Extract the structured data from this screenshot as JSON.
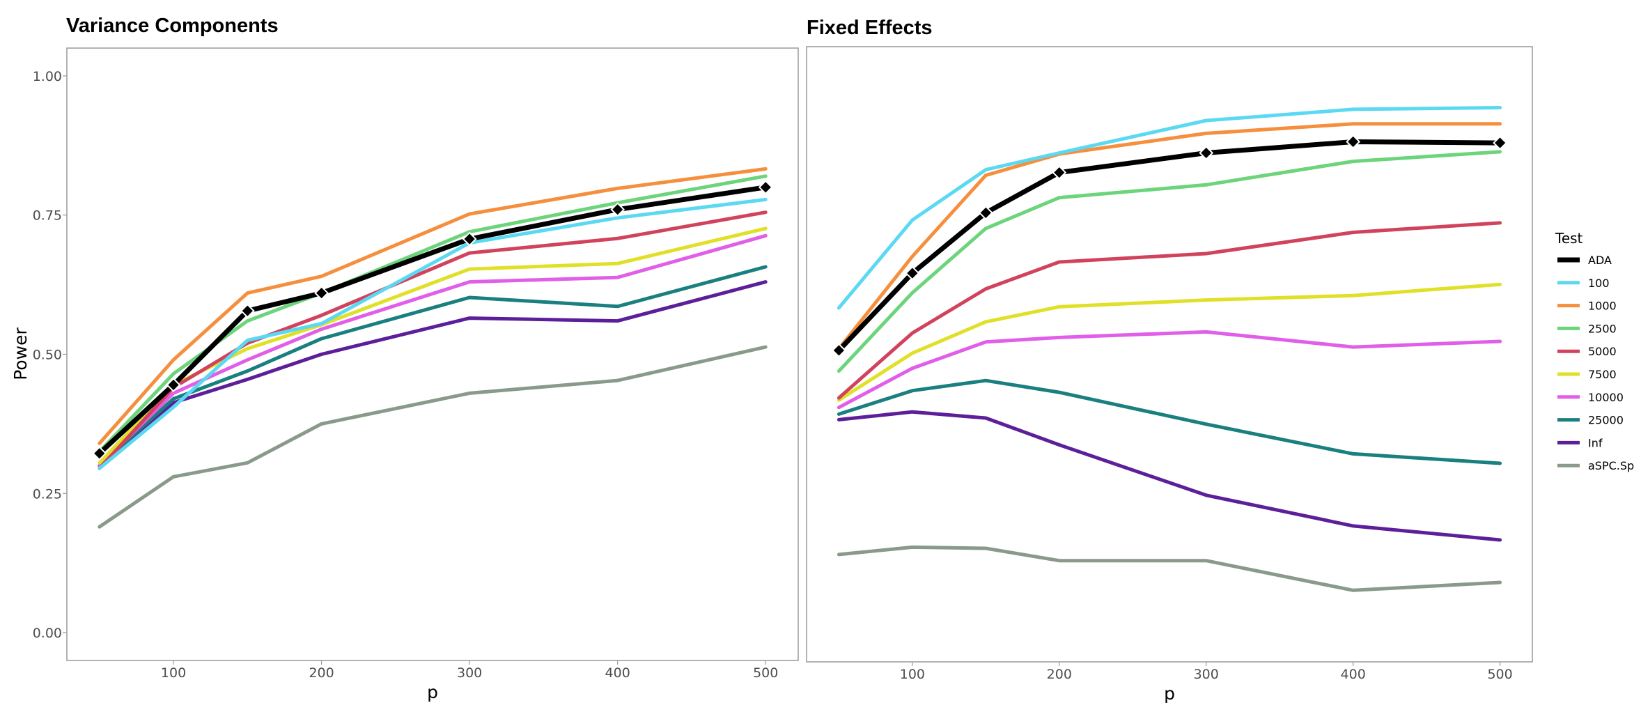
{
  "chart_data": [
    {
      "type": "line",
      "title": "Variance Components",
      "xlabel": "p",
      "ylabel": "Power",
      "x": [
        50,
        100,
        150,
        200,
        300,
        400,
        500
      ],
      "x_ticks": [
        "100",
        "200",
        "300",
        "400",
        "500"
      ],
      "y_ticks": [
        "0.00",
        "0.25",
        "0.50",
        "0.75",
        "1.00"
      ],
      "ylim": [
        -0.05,
        1.05
      ],
      "xlim": [
        28,
        522
      ],
      "series": [
        {
          "name": "aSPC.Sp",
          "color": "#8a9a8a",
          "values": [
            0.19,
            0.28,
            0.305,
            0.375,
            0.43,
            0.453,
            0.513
          ]
        },
        {
          "name": "Inf",
          "color": "#5c1f99",
          "values": [
            0.3,
            0.413,
            0.455,
            0.5,
            0.565,
            0.56,
            0.63
          ]
        },
        {
          "name": "25000",
          "color": "#1a7f7f",
          "values": [
            0.3,
            0.42,
            0.47,
            0.528,
            0.602,
            0.586,
            0.657
          ]
        },
        {
          "name": "10000",
          "color": "#e05ee8",
          "values": [
            0.3,
            0.43,
            0.49,
            0.545,
            0.63,
            0.638,
            0.713
          ]
        },
        {
          "name": "7500",
          "color": "#e0e028",
          "values": [
            0.305,
            0.445,
            0.51,
            0.553,
            0.653,
            0.663,
            0.726
          ]
        },
        {
          "name": "5000",
          "color": "#d1425c",
          "values": [
            0.295,
            0.44,
            0.52,
            0.57,
            0.682,
            0.708,
            0.755
          ]
        },
        {
          "name": "100",
          "color": "#5cd9f2",
          "values": [
            0.295,
            0.405,
            0.525,
            0.555,
            0.7,
            0.745,
            0.778
          ]
        },
        {
          "name": "2500",
          "color": "#6cd47a",
          "values": [
            0.325,
            0.465,
            0.56,
            0.61,
            0.72,
            0.772,
            0.82
          ]
        },
        {
          "name": "1000",
          "color": "#f58f3d",
          "values": [
            0.34,
            0.49,
            0.61,
            0.64,
            0.752,
            0.798,
            0.833
          ]
        },
        {
          "name": "ADA",
          "color": "#000000",
          "values": [
            0.322,
            0.445,
            0.578,
            0.61,
            0.707,
            0.76,
            0.8
          ]
        }
      ]
    },
    {
      "type": "line",
      "title": "Fixed Effects",
      "xlabel": "p",
      "ylabel": "",
      "x": [
        50,
        100,
        150,
        200,
        300,
        400,
        500
      ],
      "x_ticks": [
        "100",
        "200",
        "300",
        "400",
        "500"
      ],
      "ylim": [
        -0.05,
        1.05
      ],
      "xlim": [
        28,
        522
      ],
      "series": [
        {
          "name": "aSPC.Sp",
          "color": "#8a9a8a",
          "values": [
            0.142,
            0.155,
            0.153,
            0.131,
            0.131,
            0.078,
            0.092
          ]
        },
        {
          "name": "Inf",
          "color": "#5c1f99",
          "values": [
            0.383,
            0.397,
            0.386,
            0.338,
            0.248,
            0.193,
            0.168
          ]
        },
        {
          "name": "25000",
          "color": "#1a7f7f",
          "values": [
            0.393,
            0.435,
            0.453,
            0.432,
            0.375,
            0.322,
            0.305
          ]
        },
        {
          "name": "10000",
          "color": "#e05ee8",
          "values": [
            0.405,
            0.475,
            0.522,
            0.53,
            0.54,
            0.513,
            0.523
          ]
        },
        {
          "name": "7500",
          "color": "#e0e028",
          "values": [
            0.418,
            0.502,
            0.558,
            0.585,
            0.597,
            0.605,
            0.625
          ]
        },
        {
          "name": "5000",
          "color": "#d1425c",
          "values": [
            0.422,
            0.538,
            0.617,
            0.665,
            0.68,
            0.718,
            0.735
          ]
        },
        {
          "name": "2500",
          "color": "#6cd47a",
          "values": [
            0.47,
            0.61,
            0.725,
            0.78,
            0.803,
            0.845,
            0.862
          ]
        },
        {
          "name": "1000",
          "color": "#f58f3d",
          "values": [
            0.51,
            0.675,
            0.82,
            0.858,
            0.895,
            0.912,
            0.912
          ]
        },
        {
          "name": "100",
          "color": "#5cd9f2",
          "values": [
            0.583,
            0.74,
            0.83,
            0.86,
            0.918,
            0.938,
            0.941
          ]
        },
        {
          "name": "ADA",
          "color": "#000000",
          "values": [
            0.507,
            0.645,
            0.753,
            0.825,
            0.86,
            0.88,
            0.878
          ]
        }
      ]
    }
  ],
  "legend": {
    "title": "Test",
    "items": [
      {
        "label": "ADA",
        "color": "#000000"
      },
      {
        "label": "100",
        "color": "#5cd9f2"
      },
      {
        "label": "1000",
        "color": "#f58f3d"
      },
      {
        "label": "2500",
        "color": "#6cd47a"
      },
      {
        "label": "5000",
        "color": "#d1425c"
      },
      {
        "label": "7500",
        "color": "#e0e028"
      },
      {
        "label": "10000",
        "color": "#e05ee8"
      },
      {
        "label": "25000",
        "color": "#1a7f7f"
      },
      {
        "label": "Inf",
        "color": "#5c1f99"
      },
      {
        "label": "aSPC.Sp",
        "color": "#8a9a8a"
      }
    ]
  }
}
